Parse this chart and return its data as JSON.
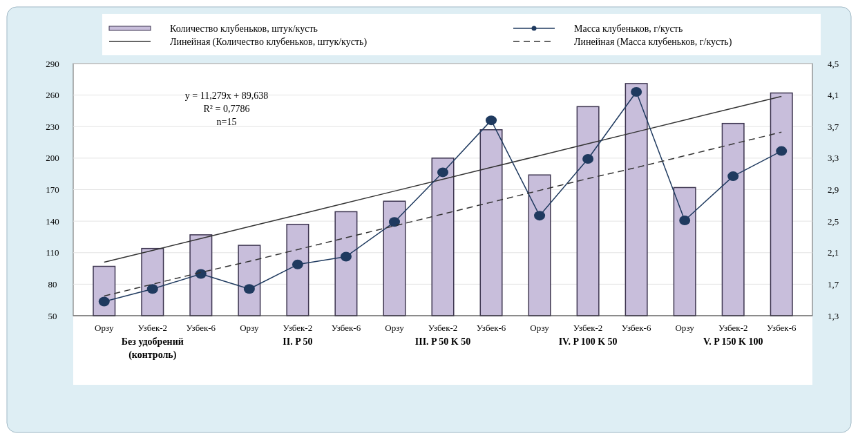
{
  "chart_data": {
    "type": "bar",
    "categories": [
      "Орзу",
      "Узбек-2",
      "Узбек-6",
      "Орзу",
      "Узбек-2",
      "Узбек-6",
      "Орзу",
      "Узбек-2",
      "Узбек-6",
      "Орзу",
      "Узбек-2",
      "Узбек-6",
      "Орзу",
      "Узбек-2",
      "Узбек-6"
    ],
    "series": [
      {
        "name": "Количество клубеньков, штук/куcть",
        "color": "#c8bedb",
        "values": [
          97,
          114,
          127,
          117,
          137,
          149,
          159,
          200,
          227,
          184,
          249,
          271,
          172,
          233,
          262
        ]
      },
      {
        "name": "Линейная (Количество клубеньков, штук/куcть)",
        "type": "line",
        "color": "#333333",
        "line_style": "solid",
        "marker": "none",
        "values": [
          100.9,
          112.2,
          123.5,
          134.8,
          146.0,
          157.3,
          168.6,
          179.9,
          191.2,
          202.4,
          213.7,
          225.0,
          236.3,
          247.6,
          258.8
        ]
      },
      {
        "name": "Масса клубеньков, г/куcть",
        "type": "line",
        "axis": "y2",
        "color": "#1f3a5f",
        "line_style": "solid",
        "marker": "circle",
        "values": [
          1.48,
          1.64,
          1.83,
          1.64,
          1.95,
          2.05,
          2.49,
          3.12,
          3.78,
          2.57,
          3.29,
          4.14,
          2.51,
          3.07,
          3.39
        ]
      },
      {
        "name": "Линейная (Масса клубеньков, г/куcть)",
        "type": "line",
        "axis": "y2",
        "color": "#333333",
        "line_style": "dashed",
        "marker": "none",
        "values": [
          1.55,
          1.7,
          1.85,
          1.99,
          2.14,
          2.29,
          2.44,
          2.59,
          2.74,
          2.89,
          3.04,
          3.18,
          3.33,
          3.48,
          3.63
        ]
      }
    ],
    "ylim": [
      50,
      290
    ],
    "yticks": [
      50,
      80,
      110,
      140,
      170,
      200,
      230,
      260,
      290
    ],
    "y2lim": [
      1.3,
      4.5
    ],
    "y2ticks": [
      {
        "value": 1.3,
        "label": "1,3"
      },
      {
        "value": 1.7,
        "label": "1,7"
      },
      {
        "value": 2.1,
        "label": "2,1"
      },
      {
        "value": 2.5,
        "label": "2,5"
      },
      {
        "value": 2.9,
        "label": "2,9"
      },
      {
        "value": 3.3,
        "label": "3,3"
      },
      {
        "value": 3.7,
        "label": "3,7"
      },
      {
        "value": 4.1,
        "label": "4,1"
      },
      {
        "value": 4.5,
        "label": "4,5"
      }
    ],
    "grid": "y",
    "legend": "top",
    "annotations": [
      "y = 11,279x + 89,638",
      "R² = 0,7786",
      "n=15",
      "Без удобрений (контроль)",
      "II. P 50",
      "III. P 50 K 50",
      "IV. P 100 K 50",
      "V. P 150 K 100"
    ]
  }
}
